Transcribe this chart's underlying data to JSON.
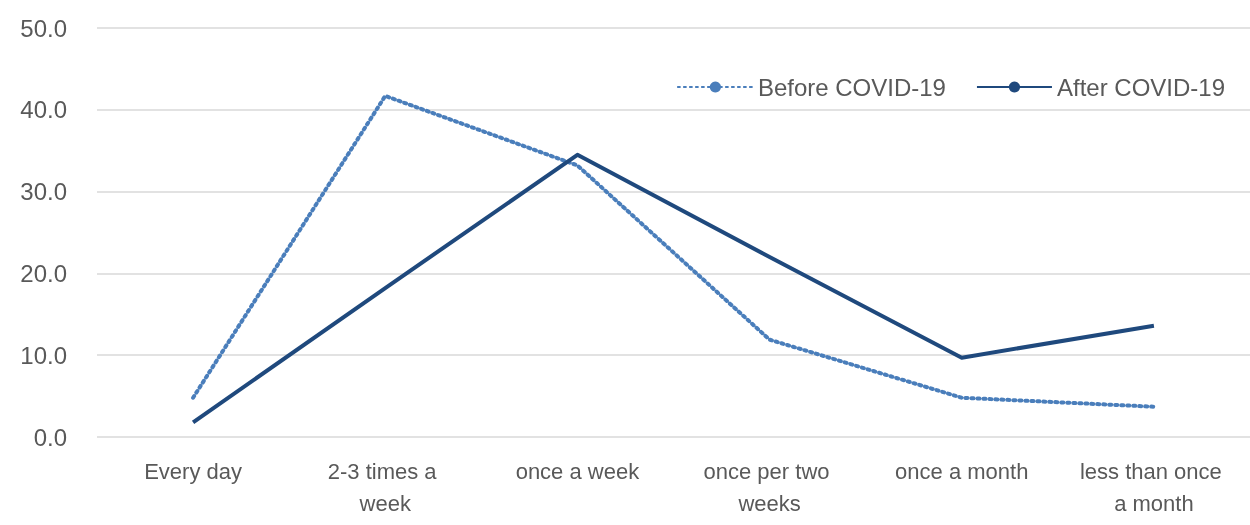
{
  "chart_data": {
    "type": "line",
    "categories": [
      "Every day",
      "2-3 times a week",
      "once a week",
      "once per two weeks",
      "once a month",
      "less than once a month"
    ],
    "series": [
      {
        "name": "Before COVID-19",
        "color": "#4a7ebb",
        "line_style": "dotted",
        "values": [
          4.8,
          41.7,
          33.2,
          11.9,
          4.8,
          3.7
        ]
      },
      {
        "name": "After COVID-19",
        "color": "#1f497d",
        "line_style": "solid",
        "values": [
          1.8,
          18.2,
          34.5,
          22.0,
          9.7,
          13.6
        ]
      }
    ],
    "ylim": [
      0,
      50
    ],
    "yticks": [
      {
        "value": 0,
        "label": "0.0"
      },
      {
        "value": 10,
        "label": "10.0"
      },
      {
        "value": 20,
        "label": "20.0"
      },
      {
        "value": 30,
        "label": "30.0"
      },
      {
        "value": 40,
        "label": "40.0"
      },
      {
        "value": 50,
        "label": "50.0"
      }
    ],
    "grid": "y",
    "legend": "top right",
    "marker": "none"
  }
}
